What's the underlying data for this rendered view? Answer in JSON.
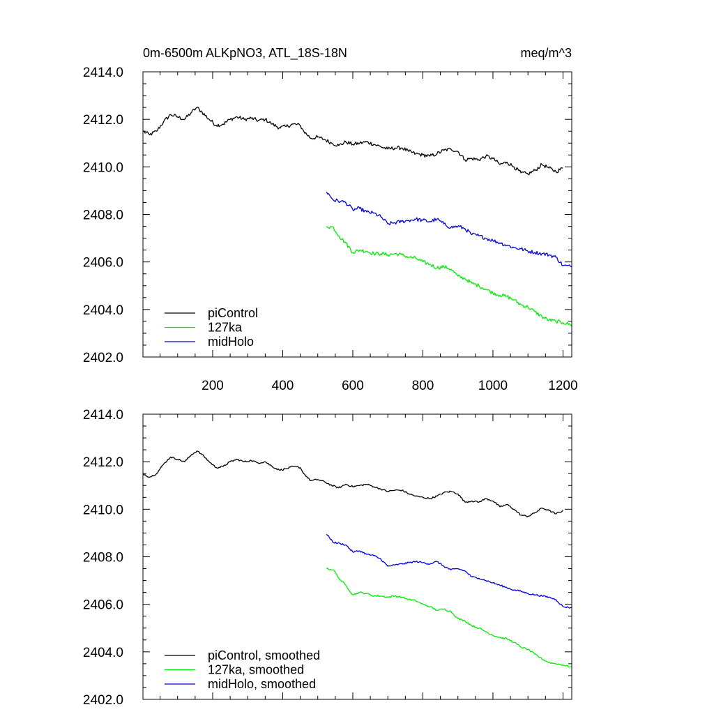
{
  "chart_data": [
    {
      "type": "line",
      "title": "0m-6500m ALKpNO3, ATL_18S-18N",
      "units": "meq/m^3",
      "xlabel": "",
      "ylabel": "",
      "xlim": [
        1,
        1225
      ],
      "ylim": [
        2402.0,
        2414.0
      ],
      "xticks": [
        200,
        400,
        600,
        800,
        1000,
        1200
      ],
      "yticks": [
        "2402.0",
        "2404.0",
        "2406.0",
        "2408.0",
        "2410.0",
        "2412.0",
        "2414.0"
      ],
      "legend_position": "bottom-left",
      "series": [
        {
          "name": "piControl",
          "color": "#000000",
          "x": [
            1,
            20,
            40,
            60,
            80,
            100,
            120,
            140,
            155,
            170,
            190,
            210,
            230,
            250,
            270,
            290,
            310,
            330,
            350,
            370,
            390,
            410,
            430,
            450,
            460,
            480,
            500,
            520,
            540,
            560,
            580,
            600,
            620,
            640,
            660,
            680,
            700,
            720,
            740,
            760,
            780,
            800,
            820,
            840,
            860,
            880,
            900,
            920,
            940,
            960,
            980,
            1000,
            1020,
            1040,
            1060,
            1080,
            1100,
            1120,
            1140,
            1160,
            1180,
            1200
          ],
          "y": [
            2411.5,
            2411.35,
            2411.5,
            2411.9,
            2412.2,
            2412.1,
            2412.0,
            2412.3,
            2412.5,
            2412.3,
            2412.0,
            2411.75,
            2411.8,
            2412.0,
            2412.1,
            2412.0,
            2412.05,
            2411.95,
            2412.0,
            2411.8,
            2411.65,
            2411.7,
            2411.8,
            2411.75,
            2411.5,
            2411.2,
            2411.25,
            2411.15,
            2411.0,
            2410.9,
            2411.05,
            2410.95,
            2411.0,
            2411.05,
            2410.95,
            2410.85,
            2410.75,
            2410.8,
            2410.8,
            2410.65,
            2410.55,
            2410.5,
            2410.45,
            2410.55,
            2410.7,
            2410.75,
            2410.65,
            2410.3,
            2410.35,
            2410.3,
            2410.45,
            2410.35,
            2410.1,
            2410.2,
            2410.0,
            2409.75,
            2409.7,
            2409.85,
            2410.1,
            2409.95,
            2409.8,
            2409.95
          ]
        },
        {
          "name": "127ka",
          "color": "#00ee00",
          "x": [
            525,
            545,
            560,
            580,
            600,
            620,
            640,
            660,
            680,
            700,
            720,
            740,
            760,
            780,
            800,
            820,
            840,
            860,
            880,
            900,
            920,
            940,
            960,
            980,
            1000,
            1020,
            1040,
            1060,
            1080,
            1100,
            1120,
            1140,
            1160,
            1180,
            1200,
            1225
          ],
          "y": [
            2407.5,
            2407.45,
            2407.1,
            2406.8,
            2406.4,
            2406.5,
            2406.45,
            2406.35,
            2406.35,
            2406.3,
            2406.35,
            2406.3,
            2406.2,
            2406.15,
            2406.0,
            2405.9,
            2405.75,
            2405.8,
            2405.7,
            2405.4,
            2405.3,
            2405.1,
            2405.0,
            2404.85,
            2404.7,
            2404.6,
            2404.55,
            2404.4,
            2404.2,
            2404.1,
            2403.9,
            2403.7,
            2403.55,
            2403.5,
            2403.45,
            2403.35
          ]
        },
        {
          "name": "midHolo",
          "color": "#0000dd",
          "x": [
            525,
            545,
            565,
            580,
            600,
            620,
            640,
            660,
            680,
            700,
            720,
            740,
            760,
            780,
            800,
            820,
            840,
            860,
            880,
            900,
            920,
            940,
            960,
            980,
            1000,
            1020,
            1040,
            1060,
            1080,
            1100,
            1120,
            1140,
            1160,
            1180,
            1200,
            1225
          ],
          "y": [
            2408.95,
            2408.6,
            2408.55,
            2408.5,
            2408.2,
            2408.25,
            2408.1,
            2408.05,
            2407.9,
            2407.6,
            2407.65,
            2407.7,
            2407.75,
            2407.8,
            2407.75,
            2407.7,
            2407.8,
            2407.6,
            2407.45,
            2407.5,
            2407.4,
            2407.15,
            2407.1,
            2407.0,
            2406.9,
            2406.8,
            2406.7,
            2406.6,
            2406.55,
            2406.45,
            2406.4,
            2406.35,
            2406.3,
            2406.2,
            2405.85,
            2405.8
          ]
        }
      ]
    },
    {
      "type": "line",
      "title": "",
      "xlabel": "",
      "ylabel": "",
      "xlim": [
        1,
        1225
      ],
      "ylim": [
        2402.0,
        2414.0
      ],
      "xticks": [
        200,
        400,
        600,
        800,
        1000,
        1200
      ],
      "yticks": [
        "2402.0",
        "2404.0",
        "2406.0",
        "2408.0",
        "2410.0",
        "2412.0",
        "2414.0"
      ],
      "legend_position": "bottom-left",
      "series": [
        {
          "name": "piControl, smoothed",
          "color": "#000000",
          "x": [
            1,
            20,
            40,
            60,
            80,
            100,
            120,
            140,
            155,
            170,
            190,
            210,
            230,
            250,
            270,
            290,
            310,
            330,
            350,
            370,
            390,
            410,
            430,
            450,
            460,
            480,
            500,
            520,
            540,
            560,
            580,
            600,
            620,
            640,
            660,
            680,
            700,
            720,
            740,
            760,
            780,
            800,
            820,
            840,
            860,
            880,
            900,
            920,
            940,
            960,
            980,
            1000,
            1020,
            1040,
            1060,
            1080,
            1100,
            1120,
            1140,
            1160,
            1180,
            1200
          ],
          "y": [
            2411.5,
            2411.35,
            2411.5,
            2411.9,
            2412.2,
            2412.1,
            2412.0,
            2412.3,
            2412.45,
            2412.3,
            2412.0,
            2411.75,
            2411.8,
            2412.0,
            2412.1,
            2412.0,
            2412.05,
            2411.95,
            2412.0,
            2411.8,
            2411.65,
            2411.7,
            2411.8,
            2411.75,
            2411.5,
            2411.2,
            2411.25,
            2411.15,
            2411.0,
            2410.9,
            2411.05,
            2410.95,
            2411.0,
            2411.05,
            2410.95,
            2410.85,
            2410.75,
            2410.8,
            2410.8,
            2410.65,
            2410.55,
            2410.5,
            2410.45,
            2410.55,
            2410.7,
            2410.75,
            2410.65,
            2410.3,
            2410.35,
            2410.3,
            2410.45,
            2410.35,
            2410.1,
            2410.2,
            2410.0,
            2409.75,
            2409.7,
            2409.85,
            2410.05,
            2409.95,
            2409.8,
            2409.95
          ]
        },
        {
          "name": "127ka, smoothed",
          "color": "#00ee00",
          "x": [
            525,
            545,
            560,
            580,
            600,
            620,
            640,
            660,
            680,
            700,
            720,
            740,
            760,
            780,
            800,
            820,
            840,
            860,
            880,
            900,
            920,
            940,
            960,
            980,
            1000,
            1020,
            1040,
            1060,
            1080,
            1100,
            1120,
            1140,
            1160,
            1180,
            1200,
            1225
          ],
          "y": [
            2407.5,
            2407.45,
            2407.1,
            2406.8,
            2406.4,
            2406.5,
            2406.45,
            2406.35,
            2406.35,
            2406.3,
            2406.35,
            2406.3,
            2406.2,
            2406.15,
            2406.0,
            2405.9,
            2405.75,
            2405.8,
            2405.7,
            2405.4,
            2405.3,
            2405.1,
            2405.0,
            2404.85,
            2404.7,
            2404.6,
            2404.55,
            2404.4,
            2404.2,
            2404.1,
            2403.9,
            2403.7,
            2403.55,
            2403.5,
            2403.45,
            2403.35
          ]
        },
        {
          "name": "midHolo, smoothed",
          "color": "#0000dd",
          "x": [
            525,
            545,
            565,
            580,
            600,
            620,
            640,
            660,
            680,
            700,
            720,
            740,
            760,
            780,
            800,
            820,
            840,
            860,
            880,
            900,
            920,
            940,
            960,
            980,
            1000,
            1020,
            1040,
            1060,
            1080,
            1100,
            1120,
            1140,
            1160,
            1180,
            1200,
            1225
          ],
          "y": [
            2408.95,
            2408.6,
            2408.55,
            2408.5,
            2408.2,
            2408.25,
            2408.1,
            2408.05,
            2407.9,
            2407.6,
            2407.65,
            2407.7,
            2407.75,
            2407.8,
            2407.75,
            2407.7,
            2407.8,
            2407.6,
            2407.45,
            2407.5,
            2407.4,
            2407.15,
            2407.1,
            2407.0,
            2406.9,
            2406.8,
            2406.7,
            2406.6,
            2406.55,
            2406.45,
            2406.4,
            2406.35,
            2406.3,
            2406.2,
            2405.9,
            2405.85
          ]
        }
      ]
    }
  ]
}
